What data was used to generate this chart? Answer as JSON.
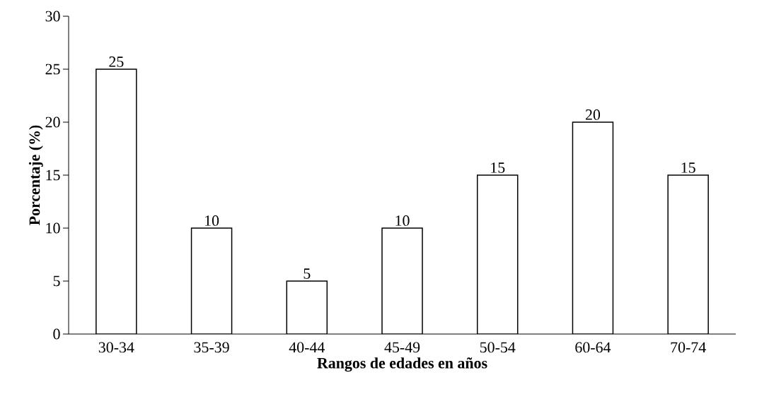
{
  "chart_data": {
    "type": "bar",
    "xlabel": "Rangos de edades en años",
    "ylabel": "Porcentaje (%)",
    "categories": [
      "30-34",
      "35-39",
      "40-44",
      "45-49",
      "50-54",
      "60-64",
      "70-74"
    ],
    "values": [
      25,
      10,
      5,
      10,
      15,
      20,
      15
    ],
    "color": "#ffffff",
    "value_labels": [
      "25",
      "10",
      "5",
      "10",
      "15",
      "20",
      "15"
    ],
    "ylim": [
      0,
      30
    ],
    "yticks": [
      0,
      5,
      10,
      15,
      20,
      25,
      30
    ]
  }
}
